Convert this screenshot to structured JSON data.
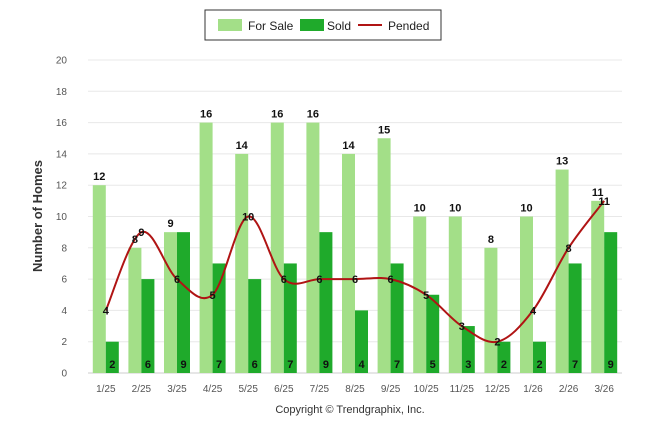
{
  "chart_data": {
    "type": "bar",
    "title": "",
    "xlabel": "",
    "ylabel": "Number of Homes",
    "ylim": [
      0,
      20
    ],
    "yticks": [
      0,
      2,
      4,
      6,
      8,
      10,
      12,
      14,
      16,
      18,
      20
    ],
    "categories": [
      "1/25",
      "2/25",
      "3/25",
      "4/25",
      "5/25",
      "6/25",
      "7/25",
      "8/25",
      "9/25",
      "10/25",
      "11/25",
      "12/25",
      "1/26",
      "2/26",
      "3/26"
    ],
    "series": [
      {
        "name": "For Sale",
        "type": "bar",
        "color": "#a3df88",
        "values": [
          12,
          8,
          9,
          16,
          14,
          16,
          16,
          14,
          15,
          10,
          10,
          8,
          10,
          13,
          11
        ]
      },
      {
        "name": "Sold",
        "type": "bar",
        "color": "#1faa2b",
        "values": [
          2,
          6,
          9,
          7,
          6,
          7,
          9,
          4,
          7,
          5,
          3,
          2,
          2,
          7,
          9
        ]
      },
      {
        "name": "Pended",
        "type": "line",
        "color": "#b01414",
        "values": [
          4,
          9,
          6,
          5,
          10,
          6,
          6,
          6,
          6,
          5,
          3,
          2,
          4,
          8,
          11
        ]
      }
    ],
    "grid": true,
    "legend": "top-center",
    "credit": "Copyright © Trendgraphix, Inc."
  }
}
